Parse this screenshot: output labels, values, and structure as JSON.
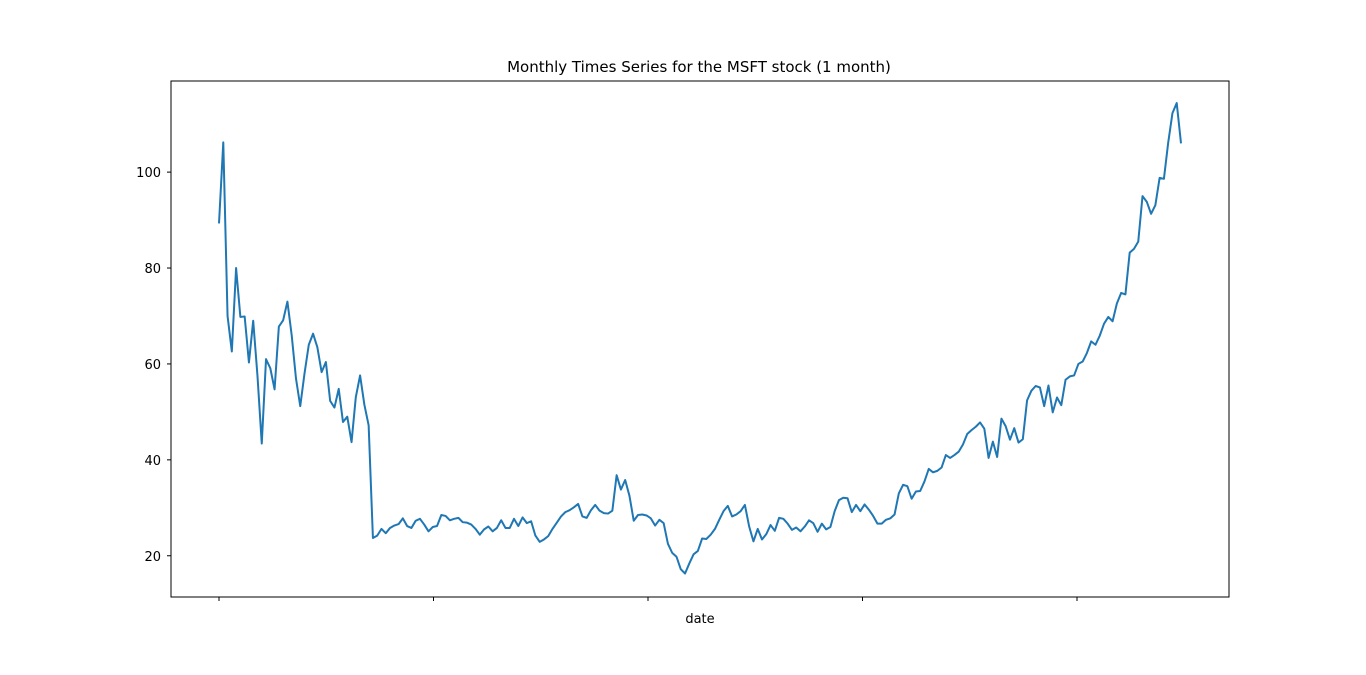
{
  "chart_data": {
    "type": "line",
    "title": "Monthly Times Series for the MSFT stock (1 month)",
    "xlabel": "date",
    "ylabel": "",
    "ylim": [
      11.4,
      119.0
    ],
    "yticks": [
      20,
      40,
      60,
      80,
      100
    ],
    "xtick_count": 5,
    "xtick_labels": [
      "",
      "",
      "",
      "",
      ""
    ],
    "grid": false,
    "legend": "none",
    "line_color": "#1f77b4",
    "series": [
      {
        "values": [
          89.3,
          106.2,
          70.0,
          62.6,
          80.0,
          69.8,
          69.9,
          60.3,
          69.0,
          57.5,
          43.4,
          61.0,
          59.1,
          54.7,
          67.8,
          69.1,
          73.0,
          66.0,
          57.0,
          51.2,
          58.0,
          64.0,
          66.3,
          63.5,
          58.3,
          60.4,
          52.3,
          50.9,
          54.8,
          47.9,
          49.0,
          43.7,
          53.1,
          57.6,
          51.5,
          47.2,
          23.7,
          24.2,
          25.6,
          24.7,
          25.8,
          26.3,
          26.6,
          27.8,
          26.2,
          25.8,
          27.3,
          27.7,
          26.5,
          25.1,
          26.0,
          26.2,
          28.5,
          28.3,
          27.4,
          27.7,
          27.9,
          27.0,
          26.9,
          26.5,
          25.6,
          24.4,
          25.5,
          26.1,
          25.1,
          25.8,
          27.4,
          25.8,
          25.8,
          27.7,
          26.2,
          28.0,
          26.8,
          27.2,
          24.2,
          22.9,
          23.4,
          24.1,
          25.6,
          26.9,
          28.2,
          29.1,
          29.5,
          30.1,
          30.8,
          28.2,
          27.9,
          29.5,
          30.6,
          29.4,
          28.9,
          28.8,
          29.4,
          36.8,
          33.8,
          35.8,
          32.5,
          27.3,
          28.5,
          28.6,
          28.4,
          27.8,
          26.3,
          27.5,
          26.8,
          22.5,
          20.6,
          19.8,
          17.2,
          16.3,
          18.4,
          20.3,
          21.0,
          23.6,
          23.5,
          24.4,
          25.6,
          27.5,
          29.3,
          30.4,
          28.2,
          28.6,
          29.3,
          30.6,
          26.1,
          23.0,
          25.6,
          23.4,
          24.5,
          26.4,
          25.2,
          27.9,
          27.7,
          26.7,
          25.4,
          25.9,
          25.1,
          26.1,
          27.4,
          26.8,
          25.0,
          26.7,
          25.5,
          26.0,
          29.3,
          31.6,
          32.1,
          32.0,
          29.1,
          30.6,
          29.3,
          30.7,
          29.6,
          28.3,
          26.7,
          26.7,
          27.5,
          27.8,
          28.6,
          33.0,
          34.8,
          34.5,
          31.9,
          33.4,
          33.5,
          35.5,
          38.1,
          37.4,
          37.7,
          38.4,
          41.0,
          40.4,
          41.0,
          41.7,
          43.2,
          45.4,
          46.2,
          46.9,
          47.8,
          46.5,
          40.4,
          43.8,
          40.6,
          48.6,
          47.0,
          44.2,
          46.6,
          43.6,
          44.3,
          52.4,
          54.4,
          55.4,
          55.1,
          51.2,
          55.5,
          49.9,
          53.0,
          51.4,
          56.7,
          57.4,
          57.6,
          60.0,
          60.5,
          62.3,
          64.7,
          64.0,
          65.9,
          68.4,
          69.8,
          68.9,
          72.6,
          74.8,
          74.5,
          83.2,
          84.0,
          85.5,
          95.0,
          93.8,
          91.3,
          93.1,
          98.8,
          98.6,
          106.1,
          112.3,
          114.4,
          106.0
        ]
      }
    ]
  }
}
